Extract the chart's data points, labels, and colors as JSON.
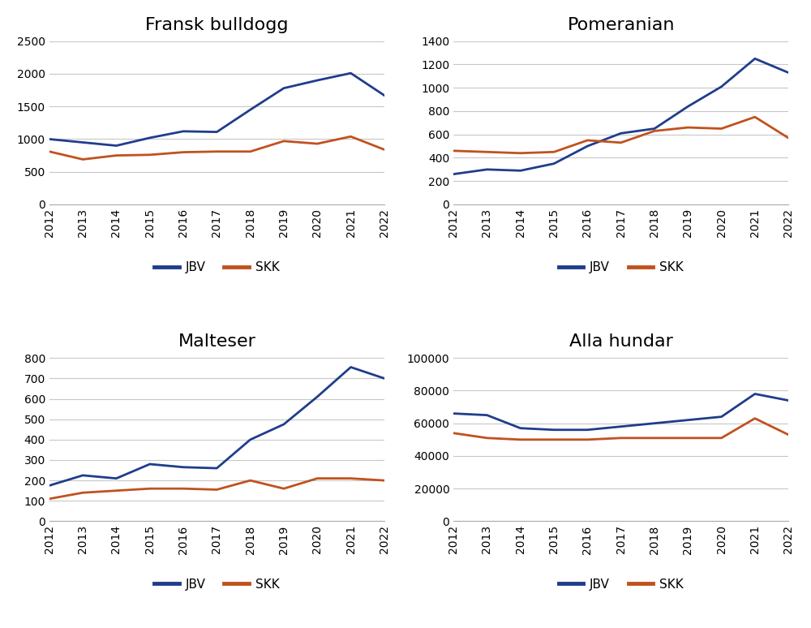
{
  "years": [
    2012,
    2013,
    2014,
    2015,
    2016,
    2017,
    2018,
    2019,
    2020,
    2021,
    2022
  ],
  "fransk_bulldogg": {
    "title": "Fransk bulldogg",
    "JBV": [
      1000,
      950,
      900,
      1020,
      1120,
      1110,
      1450,
      1780,
      1900,
      2010,
      1670
    ],
    "SKK": [
      810,
      690,
      750,
      760,
      800,
      810,
      810,
      970,
      930,
      1040,
      840
    ],
    "ylim": [
      0,
      2500
    ],
    "yticks": [
      0,
      500,
      1000,
      1500,
      2000,
      2500
    ]
  },
  "pomeranian": {
    "title": "Pomeranian",
    "JBV": [
      260,
      300,
      290,
      350,
      500,
      610,
      650,
      840,
      1010,
      1250,
      1130
    ],
    "SKK": [
      460,
      450,
      440,
      450,
      550,
      530,
      630,
      660,
      650,
      750,
      570
    ],
    "ylim": [
      0,
      1400
    ],
    "yticks": [
      0,
      200,
      400,
      600,
      800,
      1000,
      1200,
      1400
    ]
  },
  "malteser": {
    "title": "Malteser",
    "JBV": [
      175,
      225,
      210,
      280,
      265,
      260,
      400,
      475,
      610,
      755,
      700
    ],
    "SKK": [
      110,
      140,
      150,
      160,
      160,
      155,
      200,
      160,
      210,
      210,
      200
    ],
    "ylim": [
      0,
      800
    ],
    "yticks": [
      0,
      100,
      200,
      300,
      400,
      500,
      600,
      700,
      800
    ]
  },
  "alla_hundar": {
    "title": "Alla hundar",
    "JBV": [
      66000,
      65000,
      57000,
      56000,
      56000,
      58000,
      60000,
      62000,
      64000,
      78000,
      74000
    ],
    "SKK": [
      54000,
      51000,
      50000,
      50000,
      50000,
      51000,
      51000,
      51000,
      51000,
      63000,
      53000
    ],
    "ylim": [
      0,
      100000
    ],
    "yticks": [
      0,
      20000,
      40000,
      60000,
      80000,
      100000
    ]
  },
  "jbv_color": "#1F3D8C",
  "skk_color": "#C0521E",
  "line_width": 2.0,
  "title_fontsize": 16,
  "tick_fontsize": 10,
  "legend_fontsize": 11,
  "grid_color": "#C8C8C8",
  "background_color": "#FFFFFF"
}
